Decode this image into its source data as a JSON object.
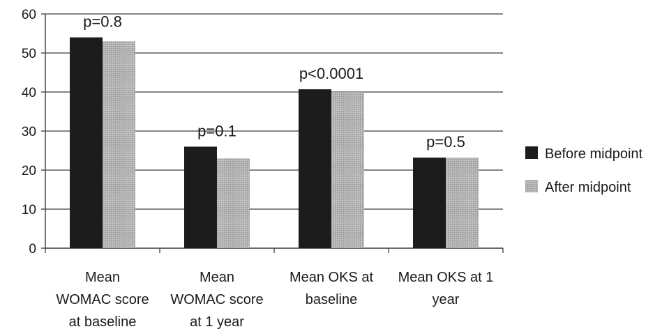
{
  "chart_data": {
    "type": "bar",
    "categories": [
      [
        "Mean",
        "WOMAC score",
        "at baseline"
      ],
      [
        "Mean",
        "WOMAC score",
        "at 1 year"
      ],
      [
        "Mean OKS at",
        "baseline"
      ],
      [
        "Mean OKS at 1",
        "year"
      ]
    ],
    "series": [
      {
        "name": "Before midpoint",
        "values": [
          54,
          26,
          40.7,
          23.2
        ],
        "color": "#1c1c1c"
      },
      {
        "name": "After midpoint",
        "values": [
          53,
          23,
          40,
          23.2
        ],
        "color": "#a6a6a6"
      }
    ],
    "annotations": [
      "p=0.8",
      "p=0.1",
      "p<0.0001",
      "p=0.5"
    ],
    "ylim": [
      0,
      60
    ],
    "yticks": [
      0,
      10,
      20,
      30,
      40,
      50,
      60
    ],
    "grid": true,
    "legend_position": "right"
  }
}
